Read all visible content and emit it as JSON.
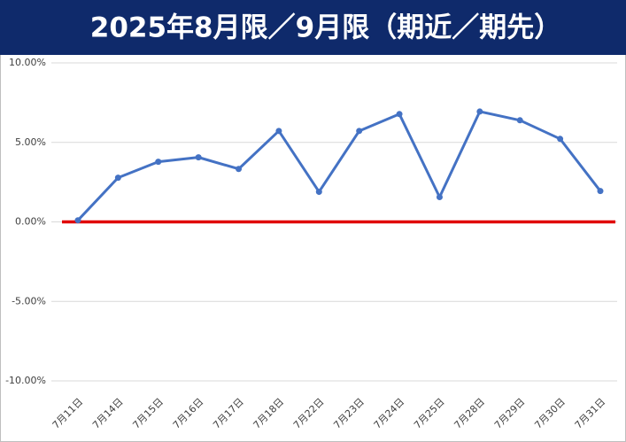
{
  "chart_data": {
    "type": "line",
    "title": "2025年8月限／9月限（期近／期先）",
    "categories": [
      "7月11日",
      "7月14日",
      "7月15日",
      "7月16日",
      "7月17日",
      "7月18日",
      "7月22日",
      "7月23日",
      "7月24日",
      "7月25日",
      "7月28日",
      "7月29日",
      "7月30日",
      "7月31日"
    ],
    "values": [
      0.1,
      2.78,
      3.78,
      4.06,
      3.33,
      5.72,
      1.89,
      5.72,
      6.78,
      1.56,
      6.94,
      6.39,
      5.22,
      1.94
    ],
    "color": "#4472c4",
    "ylim": [
      -10,
      10
    ],
    "yticks": [
      {
        "value": -10,
        "label": "-10.00%"
      },
      {
        "value": -5,
        "label": "-5.00%"
      },
      {
        "value": 0,
        "label": "0.00%"
      },
      {
        "value": 5,
        "label": "5.00%"
      },
      {
        "value": 10,
        "label": "10.00%"
      }
    ],
    "reference_line": 0,
    "reference_color": "#e00000",
    "grid": true
  }
}
